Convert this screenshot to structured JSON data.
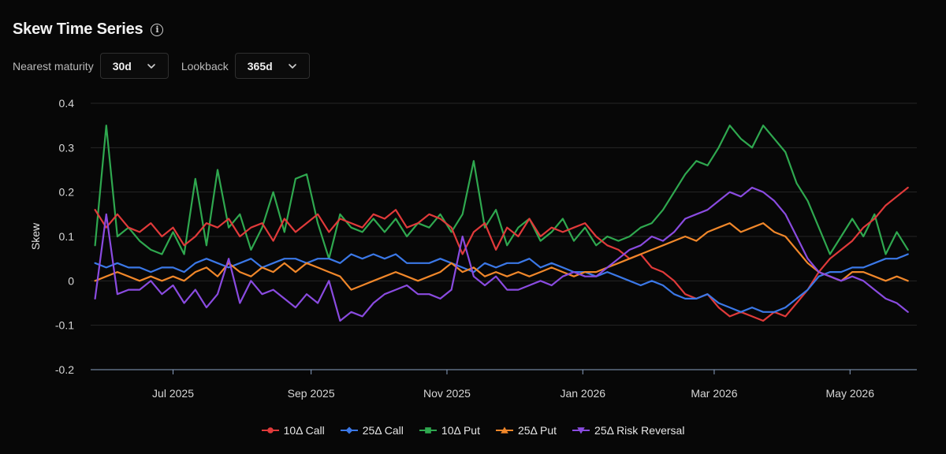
{
  "header": {
    "title": "Skew Time Series",
    "info_icon": "info-icon"
  },
  "controls": {
    "maturity": {
      "label": "Nearest maturity",
      "value": "30d"
    },
    "lookback": {
      "label": "Lookback",
      "value": "365d"
    }
  },
  "colors": {
    "call10": "#e03a3a",
    "call25": "#3b78e7",
    "put10": "#2fa84f",
    "put25": "#f0872a",
    "rr25": "#8a4be0",
    "grid": "#262626",
    "axis": "#8aa0c0"
  },
  "chart_data": {
    "type": "line",
    "ylabel": "Skew",
    "ylim": [
      -0.2,
      0.4
    ],
    "yticks": [
      "0.4",
      "0.3",
      "0.2",
      "0.1",
      "0",
      "-0.1",
      "-0.2"
    ],
    "ytick_values": [
      0.4,
      0.3,
      0.2,
      0.1,
      0,
      -0.1,
      -0.2
    ],
    "xlim": [
      "2025-05-25",
      "2026-05-31"
    ],
    "xticks": [
      {
        "label": "Jul 2025",
        "date": "2025-07-01"
      },
      {
        "label": "Sep 2025",
        "date": "2025-09-01"
      },
      {
        "label": "Nov 2025",
        "date": "2025-11-01"
      },
      {
        "label": "Jan 2026",
        "date": "2026-01-01"
      },
      {
        "label": "Mar 2026",
        "date": "2026-03-01"
      },
      {
        "label": "May 2026",
        "date": "2026-05-01"
      }
    ],
    "x": [
      "2025-05-27",
      "2025-06-01",
      "2025-06-06",
      "2025-06-11",
      "2025-06-16",
      "2025-06-21",
      "2025-06-26",
      "2025-07-01",
      "2025-07-06",
      "2025-07-11",
      "2025-07-16",
      "2025-07-21",
      "2025-07-26",
      "2025-07-31",
      "2025-08-05",
      "2025-08-10",
      "2025-08-15",
      "2025-08-20",
      "2025-08-25",
      "2025-08-30",
      "2025-09-04",
      "2025-09-09",
      "2025-09-14",
      "2025-09-19",
      "2025-09-24",
      "2025-09-29",
      "2025-10-04",
      "2025-10-09",
      "2025-10-14",
      "2025-10-19",
      "2025-10-24",
      "2025-10-29",
      "2025-11-03",
      "2025-11-08",
      "2025-11-13",
      "2025-11-18",
      "2025-11-23",
      "2025-11-28",
      "2025-12-03",
      "2025-12-08",
      "2025-12-13",
      "2025-12-18",
      "2025-12-23",
      "2025-12-28",
      "2026-01-02",
      "2026-01-07",
      "2026-01-12",
      "2026-01-17",
      "2026-01-22",
      "2026-01-27",
      "2026-02-01",
      "2026-02-06",
      "2026-02-11",
      "2026-02-16",
      "2026-02-21",
      "2026-02-26",
      "2026-03-03",
      "2026-03-08",
      "2026-03-13",
      "2026-03-18",
      "2026-03-23",
      "2026-03-28",
      "2026-04-02",
      "2026-04-07",
      "2026-04-12",
      "2026-04-17",
      "2026-04-22",
      "2026-04-27",
      "2026-05-02",
      "2026-05-07",
      "2026-05-12",
      "2026-05-17",
      "2026-05-22",
      "2026-05-27"
    ],
    "series": [
      {
        "name": "10Δ Call",
        "color": "#e03a3a",
        "marker": "circle",
        "values": [
          0.16,
          0.12,
          0.15,
          0.12,
          0.11,
          0.13,
          0.1,
          0.12,
          0.08,
          0.1,
          0.13,
          0.12,
          0.14,
          0.1,
          0.12,
          0.13,
          0.09,
          0.14,
          0.11,
          0.13,
          0.15,
          0.11,
          0.14,
          0.13,
          0.12,
          0.15,
          0.14,
          0.16,
          0.12,
          0.13,
          0.15,
          0.14,
          0.12,
          0.06,
          0.11,
          0.13,
          0.07,
          0.12,
          0.1,
          0.14,
          0.1,
          0.12,
          0.11,
          0.12,
          0.13,
          0.1,
          0.08,
          0.07,
          0.05,
          0.06,
          0.03,
          0.02,
          0.0,
          -0.03,
          -0.04,
          -0.03,
          -0.06,
          -0.08,
          -0.07,
          -0.08,
          -0.09,
          -0.07,
          -0.08,
          -0.05,
          -0.02,
          0.02,
          0.05,
          0.07,
          0.09,
          0.12,
          0.14,
          0.17,
          0.19,
          0.21
        ]
      },
      {
        "name": "25Δ Call",
        "color": "#3b78e7",
        "marker": "diamond",
        "values": [
          0.04,
          0.03,
          0.04,
          0.03,
          0.03,
          0.02,
          0.03,
          0.03,
          0.02,
          0.04,
          0.05,
          0.04,
          0.03,
          0.04,
          0.05,
          0.03,
          0.04,
          0.05,
          0.05,
          0.04,
          0.05,
          0.05,
          0.04,
          0.06,
          0.05,
          0.06,
          0.05,
          0.06,
          0.04,
          0.04,
          0.04,
          0.05,
          0.04,
          0.03,
          0.02,
          0.04,
          0.03,
          0.04,
          0.04,
          0.05,
          0.03,
          0.04,
          0.03,
          0.02,
          0.02,
          0.01,
          0.02,
          0.01,
          0.0,
          -0.01,
          0.0,
          -0.01,
          -0.03,
          -0.04,
          -0.04,
          -0.03,
          -0.05,
          -0.06,
          -0.07,
          -0.06,
          -0.07,
          -0.07,
          -0.06,
          -0.04,
          -0.02,
          0.01,
          0.02,
          0.02,
          0.03,
          0.03,
          0.04,
          0.05,
          0.05,
          0.06
        ]
      },
      {
        "name": "10Δ Put",
        "color": "#2fa84f",
        "marker": "square",
        "values": [
          0.08,
          0.35,
          0.1,
          0.12,
          0.09,
          0.07,
          0.06,
          0.11,
          0.06,
          0.23,
          0.08,
          0.25,
          0.12,
          0.15,
          0.07,
          0.12,
          0.2,
          0.11,
          0.23,
          0.24,
          0.13,
          0.05,
          0.15,
          0.12,
          0.11,
          0.14,
          0.11,
          0.14,
          0.1,
          0.13,
          0.12,
          0.15,
          0.11,
          0.15,
          0.27,
          0.12,
          0.16,
          0.08,
          0.12,
          0.14,
          0.09,
          0.11,
          0.14,
          0.09,
          0.12,
          0.08,
          0.1,
          0.09,
          0.1,
          0.12,
          0.13,
          0.16,
          0.2,
          0.24,
          0.27,
          0.26,
          0.3,
          0.35,
          0.32,
          0.3,
          0.35,
          0.32,
          0.29,
          0.22,
          0.18,
          0.12,
          0.06,
          0.1,
          0.14,
          0.1,
          0.15,
          0.06,
          0.11,
          0.07
        ]
      },
      {
        "name": "25Δ Put",
        "color": "#f0872a",
        "marker": "triangle-up",
        "values": [
          0.0,
          0.01,
          0.02,
          0.01,
          0.0,
          0.01,
          0.0,
          0.01,
          0.0,
          0.02,
          0.03,
          0.01,
          0.04,
          0.02,
          0.01,
          0.03,
          0.02,
          0.04,
          0.02,
          0.04,
          0.03,
          0.02,
          0.01,
          -0.02,
          -0.01,
          0.0,
          0.01,
          0.02,
          0.01,
          0.0,
          0.01,
          0.02,
          0.04,
          0.02,
          0.03,
          0.01,
          0.02,
          0.01,
          0.02,
          0.01,
          0.02,
          0.03,
          0.02,
          0.01,
          0.02,
          0.02,
          0.03,
          0.04,
          0.05,
          0.06,
          0.07,
          0.08,
          0.09,
          0.1,
          0.09,
          0.11,
          0.12,
          0.13,
          0.11,
          0.12,
          0.13,
          0.11,
          0.1,
          0.07,
          0.04,
          0.02,
          0.01,
          0.0,
          0.02,
          0.02,
          0.01,
          0.0,
          0.01,
          0.0
        ]
      },
      {
        "name": "25Δ Risk Reversal",
        "color": "#8a4be0",
        "marker": "triangle-down",
        "values": [
          -0.04,
          0.15,
          -0.03,
          -0.02,
          -0.02,
          0.0,
          -0.03,
          -0.01,
          -0.05,
          -0.02,
          -0.06,
          -0.03,
          0.05,
          -0.05,
          0.0,
          -0.03,
          -0.02,
          -0.04,
          -0.06,
          -0.03,
          -0.05,
          0.0,
          -0.09,
          -0.07,
          -0.08,
          -0.05,
          -0.03,
          -0.02,
          -0.01,
          -0.03,
          -0.03,
          -0.04,
          -0.02,
          0.1,
          0.01,
          -0.01,
          0.01,
          -0.02,
          -0.02,
          -0.01,
          0.0,
          -0.01,
          0.01,
          0.02,
          0.01,
          0.01,
          0.03,
          0.05,
          0.07,
          0.08,
          0.1,
          0.09,
          0.11,
          0.14,
          0.15,
          0.16,
          0.18,
          0.2,
          0.19,
          0.21,
          0.2,
          0.18,
          0.15,
          0.1,
          0.05,
          0.02,
          0.01,
          0.0,
          0.01,
          0.0,
          -0.02,
          -0.04,
          -0.05,
          -0.07
        ]
      }
    ]
  }
}
